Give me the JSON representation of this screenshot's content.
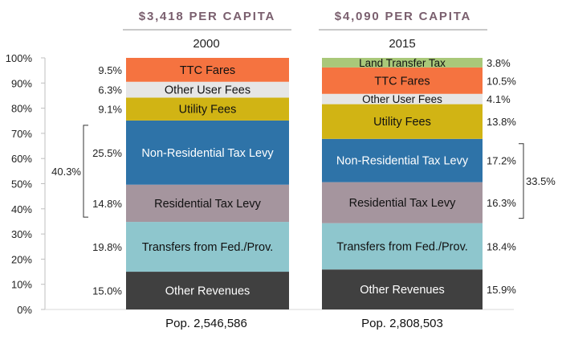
{
  "headers": [
    {
      "per_capita": "$3,418 PER CAPITA",
      "year": "2000",
      "population": "Pop. 2,546,586"
    },
    {
      "per_capita": "$4,090 PER CAPITA",
      "year": "2015",
      "population": "Pop. 2,808,503"
    }
  ],
  "brackets": [
    {
      "label": "40.3%",
      "bar": "2000",
      "side": "left",
      "spans": [
        "Non-Residential Tax Levy",
        "Residential Tax Levy"
      ]
    },
    {
      "label": "33.5%",
      "bar": "2015",
      "side": "right",
      "spans": [
        "Non-Residential Tax Levy",
        "Residential Tax Levy"
      ]
    }
  ],
  "chart_data": {
    "type": "bar",
    "stacked": true,
    "categories": [
      "2000",
      "2015"
    ],
    "ylim": [
      0,
      100
    ],
    "yticks": [
      "0%",
      "10%",
      "20%",
      "30%",
      "40%",
      "50%",
      "60%",
      "70%",
      "80%",
      "90%",
      "100%"
    ],
    "series": [
      {
        "name": "Other Revenues",
        "color": "#404040",
        "text_color": "#ffffff",
        "values": [
          15.0,
          15.9
        ],
        "labels": [
          "15.0%",
          "15.9%"
        ]
      },
      {
        "name": "Transfers from Fed./Prov.",
        "color": "#8ec6cd",
        "text_color": "#111111",
        "values": [
          19.8,
          18.4
        ],
        "labels": [
          "19.8%",
          "18.4%"
        ]
      },
      {
        "name": "Residential Tax Levy",
        "color": "#a5959e",
        "text_color": "#111111",
        "values": [
          14.8,
          16.3
        ],
        "labels": [
          "14.8%",
          "16.3%"
        ]
      },
      {
        "name": "Non-Residential Tax Levy",
        "color": "#2e73a8",
        "text_color": "#ffffff",
        "values": [
          25.5,
          17.2
        ],
        "labels": [
          "25.5%",
          "17.2%"
        ]
      },
      {
        "name": "Utility Fees",
        "color": "#d1b414",
        "text_color": "#111111",
        "values": [
          9.1,
          13.8
        ],
        "labels": [
          "9.1%",
          "13.8%"
        ]
      },
      {
        "name": "Other User Fees",
        "color": "#e6e6e6",
        "text_color": "#111111",
        "values": [
          6.3,
          4.1
        ],
        "labels": [
          "6.3%",
          "4.1%"
        ]
      },
      {
        "name": "TTC Fares",
        "color": "#f57340",
        "text_color": "#111111",
        "values": [
          9.5,
          10.5
        ],
        "labels": [
          "9.5%",
          "10.5%"
        ]
      },
      {
        "name": "Land Transfer Tax",
        "color": "#a9c879",
        "text_color": "#111111",
        "values": [
          0,
          3.8
        ],
        "labels": [
          "",
          "3.8%"
        ]
      }
    ]
  }
}
